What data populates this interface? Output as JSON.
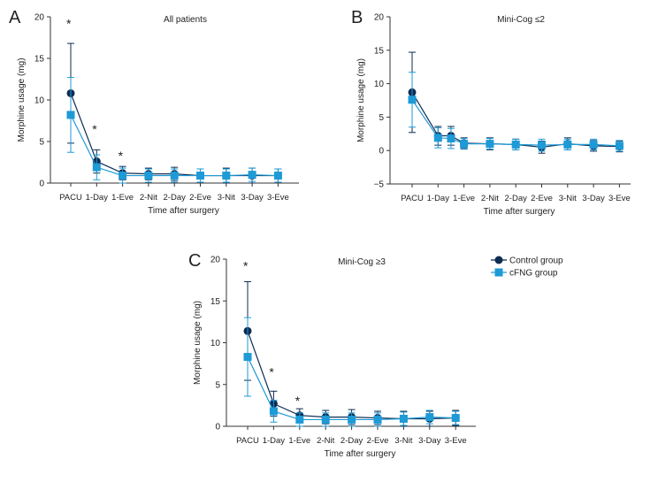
{
  "colors": {
    "control": "#0d2c52",
    "cfng": "#1e9ad6",
    "axis": "#333333"
  },
  "chart_data": [
    {
      "type": "line",
      "panel_letter": "A",
      "title": "All patients",
      "xlabel": "Time after surgery",
      "ylabel": "Morphine usage (mg)",
      "ylim": [
        0,
        20
      ],
      "yticks": [
        0,
        5,
        10,
        15,
        20
      ],
      "categories": [
        "PACU",
        "1-Day",
        "1-Eve",
        "2-Nit",
        "2-Day",
        "2-Eve",
        "3-Nit",
        "3-Day",
        "3-Eve"
      ],
      "series": [
        {
          "name": "Control group",
          "x": [
            0,
            1,
            2,
            3,
            4,
            5,
            6,
            7,
            8
          ],
          "values": [
            10.8,
            2.6,
            1.2,
            1.1,
            1.1,
            0.9,
            0.9,
            0.9,
            0.9
          ],
          "error": [
            6.0,
            1.4,
            0.8,
            0.7,
            0.8,
            0.8,
            0.9,
            0.9,
            0.8
          ]
        },
        {
          "name": "cFNG group",
          "x": [
            0,
            1,
            2,
            3,
            4,
            5,
            6,
            7,
            8
          ],
          "values": [
            8.2,
            1.9,
            0.9,
            0.9,
            0.9,
            0.9,
            0.9,
            1.0,
            0.9
          ],
          "error": [
            4.5,
            1.5,
            0.9,
            0.8,
            0.8,
            0.8,
            0.8,
            0.8,
            0.8
          ]
        }
      ],
      "annotations": [
        {
          "text": "*",
          "x": 0,
          "y": 19.5
        },
        {
          "text": "*",
          "x": 1,
          "y": 6.8
        },
        {
          "text": "*",
          "x": 2,
          "y": 3.6
        }
      ]
    },
    {
      "type": "line",
      "panel_letter": "B",
      "title": "Mini-Cog ≤2",
      "xlabel": "Time after surgery",
      "ylabel": "Morphine usage (mg)",
      "ylim": [
        -5,
        20
      ],
      "yticks": [
        -5,
        0,
        5,
        10,
        15,
        20
      ],
      "categories": [
        "PACU",
        "1-Day",
        "1-Eve",
        "2-Nit",
        "2-Day",
        "2-Eve",
        "3-Nit",
        "3-Day",
        "3-Eve"
      ],
      "series": [
        {
          "name": "Control group",
          "x": [
            0,
            1,
            1.5,
            2,
            3,
            4,
            5,
            6,
            7,
            8
          ],
          "values": [
            8.7,
            2.2,
            2.2,
            1.1,
            1.0,
            0.9,
            0.5,
            1.0,
            0.7,
            0.6
          ],
          "error": [
            6.0,
            1.4,
            1.4,
            0.8,
            0.9,
            0.8,
            0.9,
            0.9,
            0.8,
            0.8
          ]
        },
        {
          "name": "cFNG group",
          "x": [
            0,
            1,
            1.5,
            2,
            3,
            4,
            5,
            6,
            7,
            8
          ],
          "values": [
            7.6,
            1.9,
            1.8,
            1.0,
            1.0,
            0.9,
            0.8,
            0.9,
            0.9,
            0.7
          ],
          "error": [
            4.1,
            1.5,
            1.5,
            0.8,
            0.8,
            0.8,
            0.9,
            0.8,
            0.8,
            0.8
          ]
        }
      ],
      "annotations": []
    },
    {
      "type": "line",
      "panel_letter": "C",
      "title": "Mini-Cog ≥3",
      "xlabel": "Time after surgery",
      "ylabel": "Morphine usage (mg)",
      "ylim": [
        0,
        20
      ],
      "yticks": [
        0,
        5,
        10,
        15,
        20
      ],
      "categories": [
        "PACU",
        "1-Day",
        "1-Eve",
        "2-Nit",
        "2-Day",
        "2-Eve",
        "3-Nit",
        "3-Day",
        "3-Eve"
      ],
      "series": [
        {
          "name": "Control group",
          "x": [
            0,
            1,
            2,
            3,
            4,
            5,
            6,
            7,
            8
          ],
          "values": [
            11.4,
            2.7,
            1.3,
            1.1,
            1.1,
            1.0,
            0.9,
            0.9,
            1.0
          ],
          "error": [
            5.9,
            1.5,
            0.8,
            0.8,
            0.9,
            0.8,
            0.9,
            0.9,
            0.9
          ]
        },
        {
          "name": "cFNG group",
          "x": [
            0,
            1,
            2,
            3,
            4,
            5,
            6,
            7,
            8
          ],
          "values": [
            8.3,
            1.8,
            0.8,
            0.8,
            0.8,
            0.8,
            0.9,
            1.1,
            1.0
          ],
          "error": [
            4.7,
            1.3,
            0.8,
            0.8,
            0.8,
            0.8,
            0.8,
            0.8,
            0.8
          ]
        }
      ],
      "annotations": [
        {
          "text": "*",
          "x": 0,
          "y": 19.5
        },
        {
          "text": "*",
          "x": 1,
          "y": 6.8
        },
        {
          "text": "*",
          "x": 2,
          "y": 3.4
        }
      ],
      "legend": {
        "placement": "right",
        "entries": [
          "Control group",
          "cFNG group"
        ]
      }
    }
  ]
}
